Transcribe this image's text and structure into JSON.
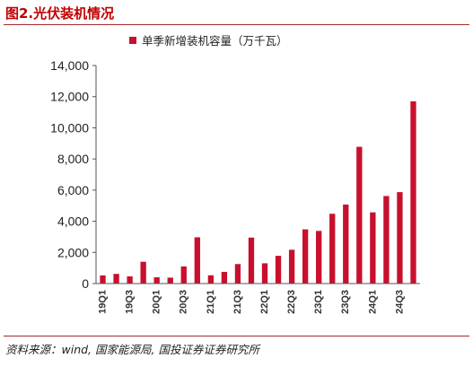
{
  "header": {
    "title": "图2.光伏装机情况"
  },
  "footer": {
    "source": "资料来源：wind, 国家能源局, 国投证券证券研究所"
  },
  "colors": {
    "bar": "#c8102e",
    "rule": "#a52a2a",
    "title": "#c00000"
  },
  "chart_data": {
    "type": "bar",
    "title": "",
    "xlabel": "",
    "ylabel": "",
    "legend": {
      "position": "top-center",
      "entries": [
        "单季新增装机容量（万千瓦）"
      ]
    },
    "grid": false,
    "ylim": [
      0,
      14000
    ],
    "yticks": [
      0,
      2000,
      4000,
      6000,
      8000,
      10000,
      12000,
      14000
    ],
    "ytick_labels": [
      "0",
      "2,000",
      "4,000",
      "6,000",
      "8,000",
      "10,000",
      "12,000",
      "14,000"
    ],
    "categories": [
      "19Q1",
      "19Q2",
      "19Q3",
      "19Q4",
      "20Q1",
      "20Q2",
      "20Q3",
      "20Q4",
      "21Q1",
      "21Q2",
      "21Q3",
      "21Q4",
      "22Q1",
      "22Q2",
      "22Q3",
      "22Q4",
      "23Q1",
      "23Q2",
      "23Q3",
      "23Q4",
      "24Q1",
      "24Q2",
      "24Q3",
      "24Q4"
    ],
    "xtick_labels": [
      "19Q1",
      "19Q3",
      "20Q1",
      "20Q3",
      "21Q1",
      "21Q3",
      "22Q1",
      "22Q3",
      "23Q1",
      "23Q3",
      "24Q1",
      "24Q3"
    ],
    "series": [
      {
        "name": "单季新增装机容量（万千瓦）",
        "values": [
          520,
          620,
          460,
          1400,
          400,
          380,
          1100,
          2970,
          530,
          750,
          1250,
          2950,
          1300,
          1780,
          2170,
          3480,
          3380,
          4480,
          5070,
          8780,
          4570,
          5620,
          5870,
          11700
        ]
      }
    ]
  }
}
